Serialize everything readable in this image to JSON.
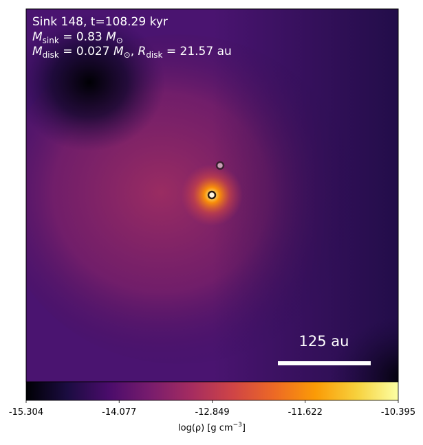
{
  "chart_data": {
    "type": "image",
    "annotations": {
      "header": "Sink 148, t=108.29 kyr",
      "sink_mass": {
        "symbol": "M",
        "subscript": "sink",
        "value": " = 0.83 ",
        "unit": "M",
        "unit_subscript": "⊙"
      },
      "disk": {
        "symbol": "M",
        "subscript": "disk",
        "value": " = 0.027 ",
        "unit": "M",
        "unit_subscript": "⊙",
        "separator": ", ",
        "radius_symbol": "R",
        "radius_subscript": "disk",
        "radius_value": " = 21.57 au"
      }
    },
    "scale_bar": "125 au",
    "colorbar": {
      "label": {
        "text": "log(ρ) [g cm",
        "superscript": "−3",
        "close": "]"
      },
      "lim": [
        -15.304,
        -10.395
      ],
      "ticks": [
        -15.304,
        -14.077,
        -12.849,
        -11.622,
        -10.395
      ],
      "colormap": "inferno"
    }
  }
}
